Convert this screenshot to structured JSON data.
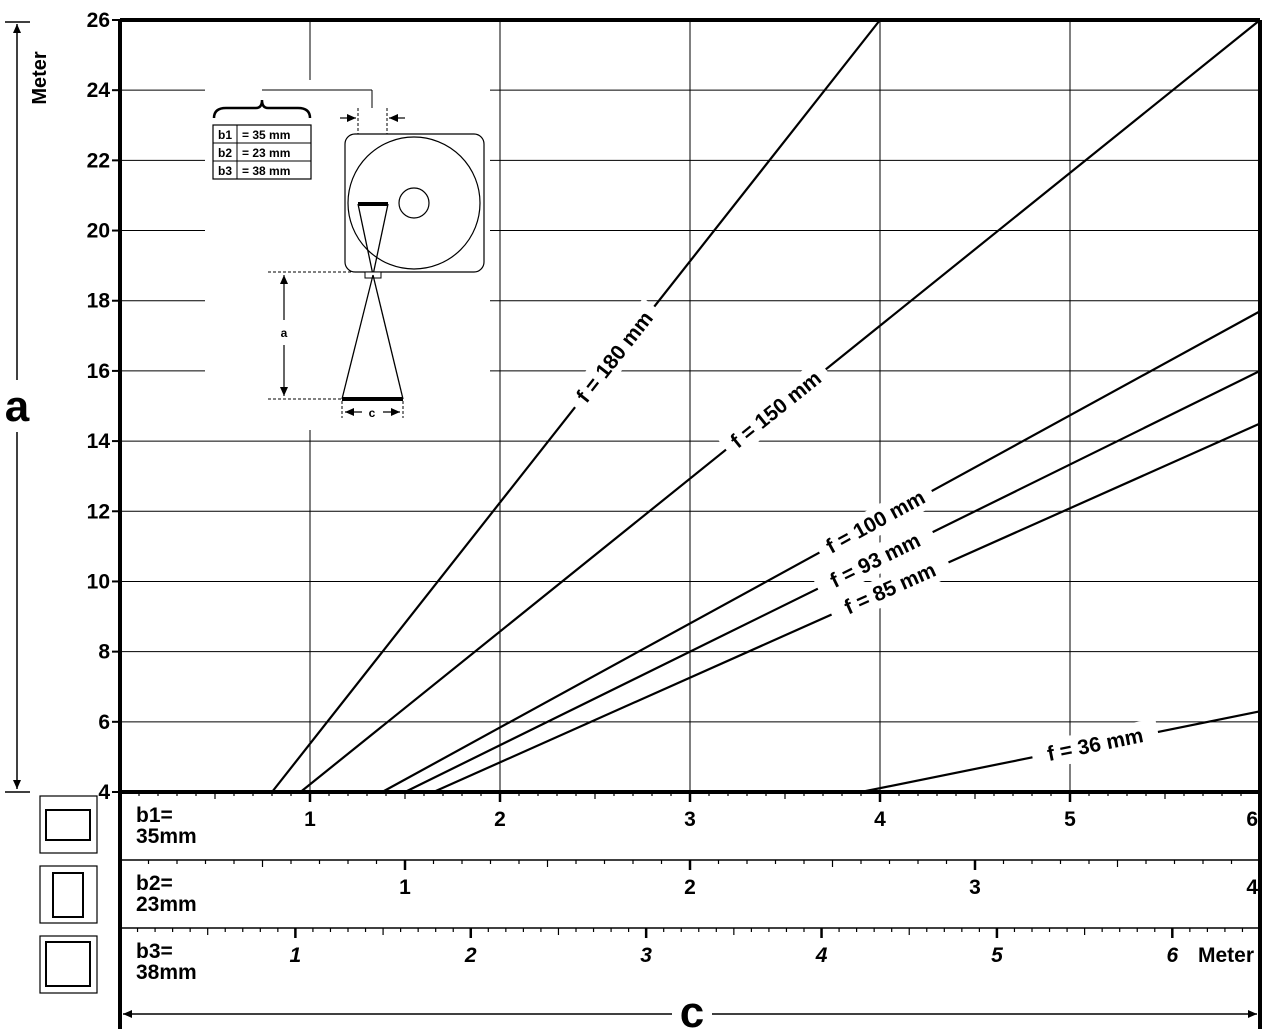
{
  "chart_data": {
    "type": "line",
    "y_axis": {
      "letter": "a",
      "unit": "Meter",
      "range": [
        4,
        26
      ],
      "ticks": [
        "4",
        "6",
        "8",
        "10",
        "12",
        "14",
        "16",
        "18",
        "20",
        "22",
        "24",
        "26"
      ]
    },
    "x_axis": {
      "letter": "c",
      "range": [
        0,
        6
      ],
      "grid": true
    },
    "series": [
      {
        "name": "f = 180 mm",
        "x": [
          0.8,
          4.0
        ],
        "y": [
          4.0,
          26.0
        ]
      },
      {
        "name": "f = 150 mm",
        "x": [
          0.95,
          6.0
        ],
        "y": [
          4.0,
          26.0
        ]
      },
      {
        "name": "f = 100 mm",
        "x": [
          1.38,
          6.0
        ],
        "y": [
          4.0,
          17.7
        ]
      },
      {
        "name": "f = 93 mm",
        "x": [
          1.5,
          6.0
        ],
        "y": [
          4.0,
          16.0
        ]
      },
      {
        "name": "f = 85 mm",
        "x": [
          1.65,
          6.0
        ],
        "y": [
          4.0,
          14.5
        ]
      },
      {
        "name": "f = 36 mm",
        "x": [
          3.9,
          6.0
        ],
        "y": [
          4.0,
          6.3
        ]
      }
    ],
    "scales": [
      {
        "name_line1": "b1=",
        "name_line2": "35mm",
        "max": 6,
        "ticks": [
          "1",
          "2",
          "3",
          "4",
          "5",
          "6"
        ],
        "italic": false
      },
      {
        "name_line1": "b2=",
        "name_line2": "23mm",
        "max": 4,
        "ticks": [
          "1",
          "2",
          "3",
          "4"
        ],
        "italic": false
      },
      {
        "name_line1": "b3=",
        "name_line2": "38mm",
        "max": 6.5,
        "ticks": [
          "1",
          "2",
          "3",
          "4",
          "5",
          "6"
        ],
        "italic": true,
        "unit": "Meter"
      }
    ]
  },
  "inset": {
    "rows": [
      {
        "key": "b1",
        "value": "= 35 mm"
      },
      {
        "key": "b2",
        "value": "= 23 mm"
      },
      {
        "key": "b3",
        "value": "= 38 mm"
      }
    ],
    "a_label": "a",
    "c_label": "c"
  }
}
